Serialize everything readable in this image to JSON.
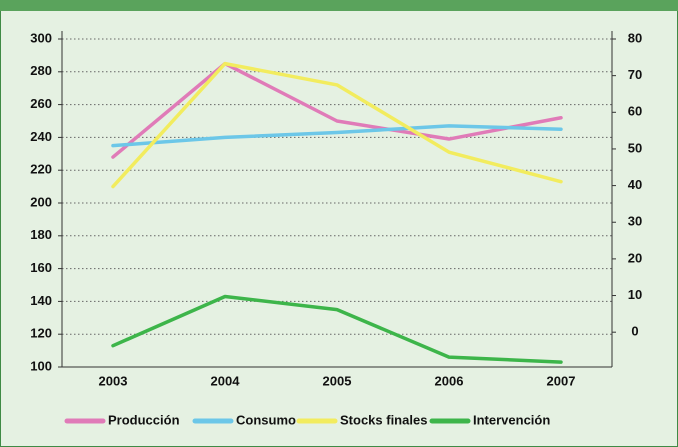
{
  "chart_data": {
    "type": "line",
    "categories": [
      "2003",
      "2004",
      "2005",
      "2006",
      "2007"
    ],
    "series": [
      {
        "name": "Producción",
        "color": "#e07bb8",
        "values": [
          228,
          285,
          250,
          239,
          252
        ]
      },
      {
        "name": "Consumo",
        "color": "#6cc7e8",
        "values": [
          235,
          240,
          243,
          247,
          245
        ]
      },
      {
        "name": "Stocks finales",
        "color": "#f2ec5e",
        "values": [
          210,
          285,
          272,
          231,
          213
        ]
      },
      {
        "name": "Intervención",
        "color": "#3db54a",
        "values": [
          113,
          143,
          135,
          106,
          103
        ]
      }
    ],
    "ylim": [
      100,
      300
    ],
    "yticks": [
      100,
      120,
      140,
      160,
      180,
      200,
      220,
      240,
      260,
      280,
      300
    ],
    "y2lim": [
      -9.5,
      80
    ],
    "y2ticks": [
      0,
      10,
      20,
      30,
      40,
      50,
      60,
      70,
      80
    ],
    "grid": true,
    "legend": "bottom"
  }
}
